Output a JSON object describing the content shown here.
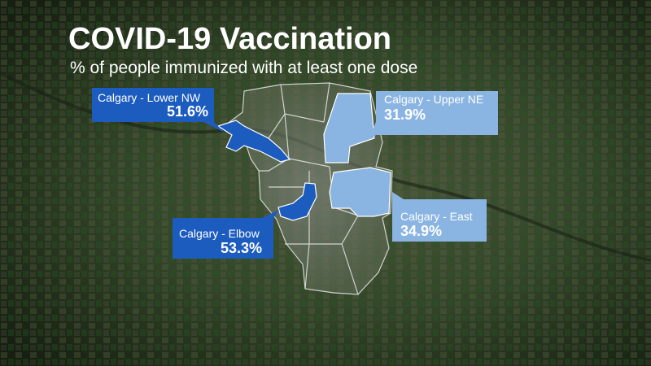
{
  "header": {
    "title": "COVID-19 Vaccination",
    "subtitle": "% of people immunized with at least one dose"
  },
  "callouts": [
    {
      "name": "Calgary - Lower NW",
      "value": "51.6%"
    },
    {
      "name": "Calgary - Upper NE",
      "value": "31.9%"
    },
    {
      "name": "Calgary - East",
      "value": "34.9%"
    },
    {
      "name": "Calgary - Elbow",
      "value": "53.3%"
    }
  ]
}
